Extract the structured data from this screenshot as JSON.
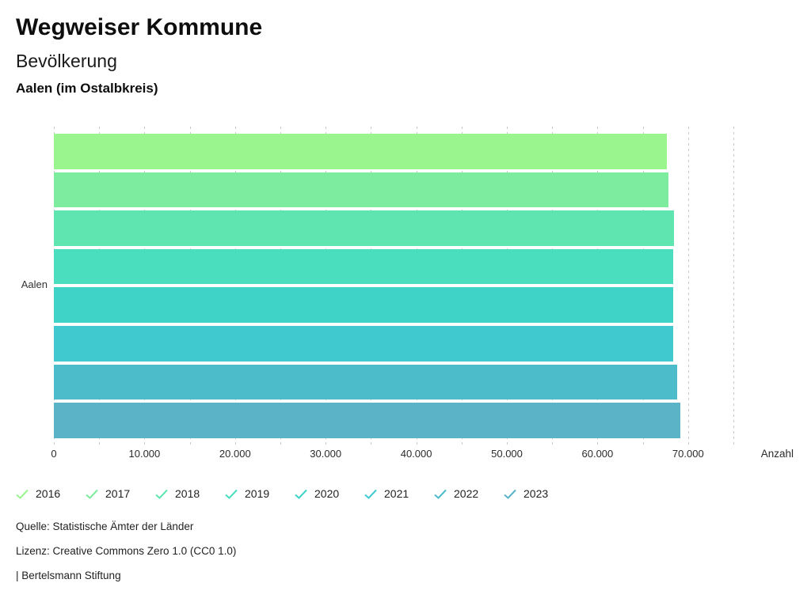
{
  "header": {
    "title": "Wegweiser Kommune",
    "subtitle": "Bevölkerung",
    "location": "Aalen (im Ostalbkreis)"
  },
  "chart_data": {
    "type": "bar",
    "orientation": "horizontal",
    "title": "Bevölkerung — Aalen (im Ostalbkreis)",
    "category": "Aalen",
    "xlabel": "Anzahl",
    "ylabel": "Aalen",
    "xlim": [
      0,
      75000
    ],
    "grid": "vertical-dashed",
    "grid_step": 5000,
    "legend_position": "bottom",
    "legend_marker": "check-icon",
    "series": [
      {
        "name": "2016",
        "value": 67700,
        "color": "#9BF58F"
      },
      {
        "name": "2017",
        "value": 67860,
        "color": "#7DEC9E"
      },
      {
        "name": "2018",
        "value": 68440,
        "color": "#5FE5B0"
      },
      {
        "name": "2019",
        "value": 68360,
        "color": "#4ADDBE"
      },
      {
        "name": "2020",
        "value": 68380,
        "color": "#3FD3C8"
      },
      {
        "name": "2021",
        "value": 68390,
        "color": "#40CACF"
      },
      {
        "name": "2022",
        "value": 68820,
        "color": "#4CBCCB"
      },
      {
        "name": "2023",
        "value": 69110,
        "color": "#5AB3C7"
      }
    ],
    "x_ticks": [
      {
        "value": 0,
        "label": "0"
      },
      {
        "value": 10000,
        "label": "10.000"
      },
      {
        "value": 20000,
        "label": "20.000"
      },
      {
        "value": 30000,
        "label": "30.000"
      },
      {
        "value": 40000,
        "label": "40.000"
      },
      {
        "value": 50000,
        "label": "50.000"
      },
      {
        "value": 60000,
        "label": "60.000"
      },
      {
        "value": 70000,
        "label": "70.000"
      }
    ]
  },
  "footer": {
    "source": "Quelle: Statistische Ämter der Länder",
    "license": "Lizenz: Creative Commons Zero 1.0 (CC0 1.0)",
    "attribution": "| Bertelsmann Stiftung"
  }
}
